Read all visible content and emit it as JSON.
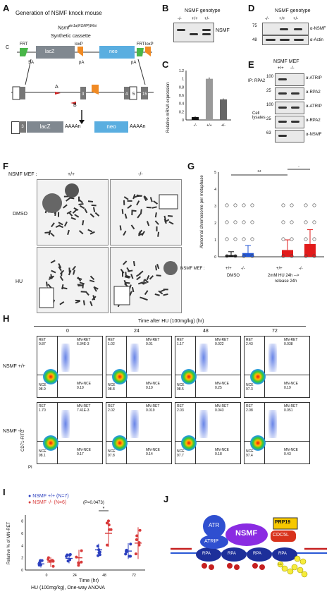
{
  "panels": {
    "A": {
      "label": "A",
      "title": "Generation of NSMF knock mouse",
      "allele": "Nsmf",
      "allele_sup": "tm1a(KOMP)Wtsi",
      "cassette": "Synthetic cassette",
      "c": "C",
      "frt": "FRT",
      "loxp": "loxP",
      "lacz": "lacZ",
      "neo": "neo",
      "sa": "SA",
      "pa": "pA",
      "exons": [
        "1",
        "3",
        "4",
        "5",
        "15"
      ],
      "a": "A",
      "b": "B",
      "polyA": "AAAAn"
    },
    "B": {
      "label": "B",
      "title": "NSMF genotype",
      "cols": [
        "-/-",
        "+/+",
        "+/-"
      ],
      "right": "NSMF"
    },
    "C": {
      "label": "C",
      "ylabel": "Relative mRNA expression",
      "categories": [
        "-/-",
        "+/+",
        "+/-"
      ],
      "ticks": [
        "0",
        "0.2",
        "0.4",
        "0.6",
        "0.8",
        "1",
        "1.2"
      ]
    },
    "D": {
      "label": "D",
      "title": "NSMF genotype",
      "cols": [
        "-/-",
        "+/+",
        "+/-"
      ],
      "mw": [
        "75",
        "48"
      ],
      "rows": [
        "α-NSMF",
        "α-Actin"
      ]
    },
    "E": {
      "label": "E",
      "title": "NSMF MEF",
      "cols": [
        "+/+",
        "-/-"
      ],
      "ip": "IP: RPA2",
      "lys": "Cell lysates",
      "mw": [
        "100",
        "25",
        "100",
        "25",
        "63"
      ],
      "rows": [
        "α-ATRIP",
        "α-RPA2",
        "α-ATRIP",
        "α-RPA2",
        "α-NSMF"
      ]
    },
    "F": {
      "label": "F",
      "header": "NSMF MEF :",
      "cols": [
        "+/+",
        "-/-"
      ],
      "rows": [
        "DMSO",
        "HU"
      ]
    },
    "G": {
      "label": "G",
      "ylabel": "Abnormal chromosome per metaphase",
      "ticks": [
        "0",
        "1",
        "2",
        "3",
        "4",
        "5"
      ],
      "row_label": "NSMF MEF :",
      "genotypes": [
        "+/+",
        "-/-",
        "+/+",
        "-/-"
      ],
      "group1": "DMSO",
      "group2": "2mM HU 24h -->",
      "group2b": "release 24h",
      "sig1": "**",
      "sig2": "*"
    },
    "H": {
      "label": "H",
      "time_title": "Time after HU (100mg/kg) (hr)",
      "times": [
        "0",
        "24",
        "48",
        "72"
      ],
      "rows": [
        "NSMF +/+",
        "NSMF -/-"
      ],
      "yaxis": "CD71-FITC",
      "xaxis": "PI",
      "qlabels": {
        "ret": "RET",
        "mnret": "MN-RET",
        "nce": "NCE",
        "mnnce": "MN-NCE"
      },
      "values": [
        [
          {
            "ret": "0.87",
            "mnret": "6.34E-3",
            "nce": "98.9",
            "mnnce": "0.19"
          },
          {
            "ret": "1.02",
            "mnret": "0.01",
            "nce": "98.8",
            "mnnce": "0.19"
          },
          {
            "ret": "1.17",
            "mnret": "0.022",
            "nce": "98.5",
            "mnnce": "0.25"
          },
          {
            "ret": "2.43",
            "mnret": "0.038",
            "nce": "97.3",
            "mnnce": "0.19"
          }
        ],
        [
          {
            "ret": "1.70",
            "mnret": "7.41E-3",
            "nce": "98.1",
            "mnnce": "0.17"
          },
          {
            "ret": "2.02",
            "mnret": "0.019",
            "nce": "97.8",
            "mnnce": "0.14"
          },
          {
            "ret": "2.03",
            "mnret": "0.043",
            "nce": "97.7",
            "mnnce": "0.18"
          },
          {
            "ret": "2.08",
            "mnret": "0.051",
            "nce": "97.4",
            "mnnce": "0.43"
          }
        ]
      ]
    },
    "I": {
      "label": "I",
      "legend": [
        "NSMF +/+ (N=7)",
        "NSMF -/- (N=6)"
      ],
      "ylabel": "Relative % of MN-RET",
      "xlabel": "Time (hr)",
      "footnote": "HU (100mg/kg), One-way ANOVA",
      "pval": "(P=0.0473)",
      "star": "*",
      "yticks": [
        "0",
        "2",
        "4",
        "6",
        "8"
      ]
    },
    "J": {
      "label": "J",
      "atr": "ATR",
      "atrip": "ATRIP",
      "rpa": "RPA",
      "nsmf": "NSMF",
      "prp19": "PRP19",
      "cdc5l": "CDC5L",
      "ub": "Ub"
    }
  },
  "chart_data": [
    {
      "type": "bar",
      "panel": "C",
      "categories": [
        "-/-",
        "+/+",
        "+/-"
      ],
      "values": [
        0.07,
        1.0,
        0.5
      ],
      "errors": [
        0.02,
        0.03,
        0.02
      ],
      "ylabel": "Relative mRNA expression",
      "ylim": [
        0,
        1.2
      ],
      "colors": [
        "#111111",
        "#999999",
        "#666666"
      ]
    },
    {
      "type": "bar",
      "panel": "G",
      "categories": [
        "DMSO +/+",
        "DMSO -/-",
        "HU +/+",
        "HU -/-"
      ],
      "values": [
        0.1,
        0.22,
        0.4,
        0.75
      ],
      "errors": [
        0.2,
        0.45,
        0.6,
        0.85
      ],
      "ylabel": "Abnormal chromosome per metaphase",
      "ylim": [
        0,
        5
      ],
      "colors": [
        "#111111",
        "#2457d6",
        "#e21b1b",
        "#e21b1b"
      ]
    },
    {
      "type": "scatter",
      "panel": "I",
      "x": [
        0,
        24,
        48,
        72
      ],
      "series": [
        {
          "name": "NSMF +/+ (N=7)",
          "means": [
            1.0,
            1.9,
            3.3,
            3.1
          ],
          "sd": [
            0.6,
            0.8,
            1.0,
            1.3
          ],
          "color": "#2b3fbf"
        },
        {
          "name": "NSMF -/- (N=6)",
          "means": [
            1.3,
            2.0,
            6.0,
            4.4
          ],
          "sd": [
            0.8,
            1.3,
            2.2,
            2.6
          ],
          "color": "#d83a3a"
        }
      ],
      "ylabel": "Relative % of MN-RET",
      "xlabel": "Time (hr)",
      "ylim": [
        0,
        9
      ]
    }
  ]
}
